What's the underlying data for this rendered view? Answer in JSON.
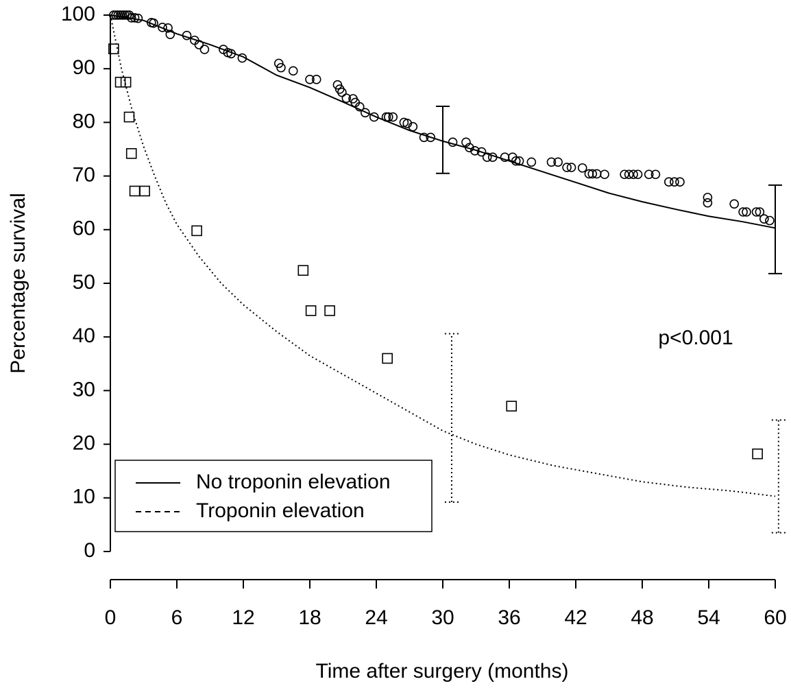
{
  "chart_data": {
    "type": "survival",
    "xlabel": "Time after surgery (months)",
    "ylabel": "Percentage survival",
    "annotation": "p<0.001",
    "xlim": [
      0,
      60
    ],
    "ylim": [
      0,
      100
    ],
    "xticks": [
      0,
      6,
      12,
      18,
      24,
      30,
      36,
      42,
      48,
      54,
      60
    ],
    "yticks": [
      0,
      10,
      20,
      30,
      40,
      50,
      60,
      70,
      80,
      90,
      100
    ],
    "legend": "bottom-left",
    "series": [
      {
        "name": "No troponin elevation",
        "color": "#000000",
        "dash": "solid",
        "x": [
          0,
          3,
          6,
          9,
          12,
          15,
          18,
          21,
          24,
          27,
          30,
          33,
          36,
          39,
          42,
          45,
          48,
          51,
          54,
          57,
          60
        ],
        "values": [
          100,
          99,
          96.5,
          94.5,
          92.2,
          88.8,
          86.5,
          83.8,
          81,
          78.5,
          76.5,
          74.8,
          72.8,
          70.8,
          68.8,
          66.8,
          65.2,
          63.8,
          62.5,
          61.5,
          60.3
        ]
      },
      {
        "name": "Troponin elevation",
        "color": "#000000",
        "dash": "dotted",
        "x": [
          0,
          1,
          2,
          3,
          4,
          5,
          6,
          8,
          10,
          12,
          15,
          18,
          21,
          24,
          27,
          30,
          33,
          36,
          40,
          44,
          48,
          52,
          56,
          60
        ],
        "values": [
          100,
          90,
          82,
          75.5,
          70,
          65,
          61,
          55,
          50,
          46,
          41,
          36.5,
          33,
          29.5,
          26,
          22.5,
          20,
          18,
          16,
          14.5,
          13,
          12,
          11.3,
          10.3
        ]
      }
    ],
    "points": [
      {
        "marker": "circle",
        "color": "#000000",
        "x": [
          0.3,
          0.5,
          0.7,
          0.9,
          1.1,
          1.3,
          1.5,
          1.7,
          1.9,
          2.2,
          2.5,
          3.7,
          3.9,
          4.7,
          5.2,
          5.4,
          6.9,
          7.6,
          8.0,
          8.5,
          10.2,
          10.6,
          10.9,
          11.9,
          15.2,
          15.4,
          16.5,
          18.0,
          18.6,
          20.5,
          20.7,
          20.9,
          21.3,
          21.9,
          22.1,
          22.5,
          23.0,
          23.8,
          24.9,
          25.1,
          25.5,
          26.5,
          26.8,
          27.3,
          28.3,
          28.9,
          30.9,
          32.1,
          32.4,
          32.9,
          33.5,
          34.0,
          34.5,
          35.6,
          36.3,
          36.6,
          36.9,
          38.0,
          39.8,
          40.4,
          41.2,
          41.6,
          42.6,
          43.2,
          43.5,
          43.9,
          44.6,
          46.4,
          46.8,
          47.2,
          47.6,
          48.6,
          49.2,
          50.4,
          50.9,
          51.4,
          53.9,
          53.9,
          56.3,
          57.1,
          57.4,
          58.3,
          58.6,
          59.0,
          59.5
        ],
        "values": [
          100,
          100,
          100,
          100,
          100,
          100,
          100,
          100,
          99.5,
          99.5,
          99.4,
          98.6,
          98.5,
          97.7,
          97.6,
          96.4,
          96.2,
          95.3,
          94.5,
          93.6,
          93.6,
          93,
          92.8,
          92,
          91,
          90.2,
          89.6,
          88,
          88,
          87,
          86.2,
          85.6,
          84.5,
          84.4,
          83.7,
          82.9,
          81.8,
          81,
          81,
          81,
          81,
          80,
          79.8,
          79.2,
          77.2,
          77.2,
          76.3,
          76.3,
          75.3,
          74.7,
          74.5,
          73.5,
          73.5,
          73.5,
          73.5,
          72.8,
          72.8,
          72.6,
          72.6,
          72.6,
          71.6,
          71.6,
          71.5,
          70.4,
          70.4,
          70.4,
          70.3,
          70.3,
          70.3,
          70.3,
          70.3,
          70.3,
          70.3,
          68.9,
          68.9,
          68.9,
          66,
          65,
          64.8,
          63.3,
          63.3,
          63.3,
          63.3,
          62,
          61.7
        ]
      },
      {
        "marker": "square",
        "color": "#000000",
        "x": [
          0.3,
          0.9,
          1.4,
          1.7,
          1.9,
          2.2,
          3.1,
          7.8,
          17.4,
          18.1,
          19.8,
          25,
          36.2,
          58.4
        ],
        "values": [
          93.7,
          87.5,
          87.5,
          81,
          74.2,
          67.2,
          67.2,
          59.8,
          52.4,
          44.9,
          44.9,
          36,
          27.1,
          18.2
        ]
      }
    ],
    "error_bars": [
      {
        "dash": "solid",
        "x": 30,
        "low": 70.5,
        "high": 83
      },
      {
        "dash": "solid",
        "x": 60,
        "low": 51.8,
        "high": 68.3
      },
      {
        "dash": "dotted",
        "x": 30.8,
        "low": 9.2,
        "high": 40.6
      },
      {
        "dash": "dotted",
        "x": 60.3,
        "low": 3.5,
        "high": 24.5
      }
    ]
  }
}
